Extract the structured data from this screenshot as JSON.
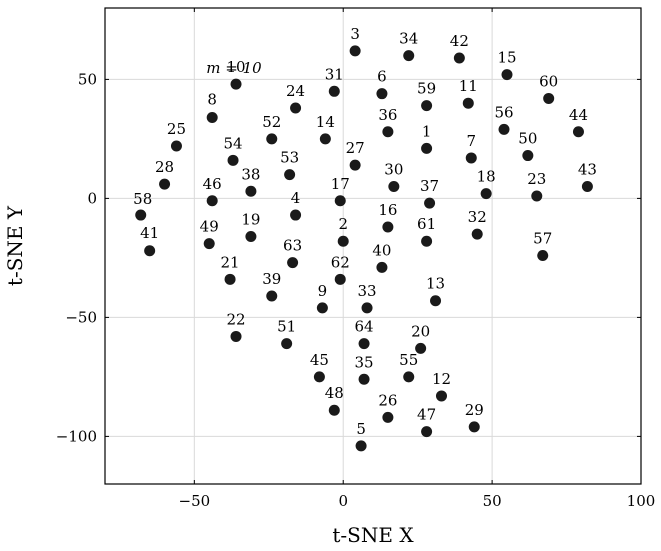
{
  "chart_data": {
    "type": "scatter",
    "title": "",
    "xlabel": "t-SNE X",
    "ylabel": "t-SNE Y",
    "xlim": [
      -80,
      100
    ],
    "ylim": [
      -120,
      80
    ],
    "xticks": [
      -50,
      0,
      50,
      100
    ],
    "yticks": [
      -100,
      -50,
      0,
      50
    ],
    "xtick_labels": [
      "−50",
      "0",
      "50",
      "100"
    ],
    "ytick_labels": [
      "−100",
      "−50",
      "0",
      "50"
    ],
    "grid": true,
    "marker_color": "#1a1a1a",
    "annotation": "m = 10",
    "points": [
      {
        "label": "1",
        "x": 28,
        "y": 21
      },
      {
        "label": "2",
        "x": 0,
        "y": -18
      },
      {
        "label": "3",
        "x": 4,
        "y": 62
      },
      {
        "label": "4",
        "x": -16,
        "y": -7
      },
      {
        "label": "5",
        "x": 6,
        "y": -104
      },
      {
        "label": "6",
        "x": 13,
        "y": 44
      },
      {
        "label": "7",
        "x": 43,
        "y": 17
      },
      {
        "label": "8",
        "x": -44,
        "y": 34
      },
      {
        "label": "9",
        "x": -7,
        "y": -46
      },
      {
        "label": "10",
        "x": -36,
        "y": 48
      },
      {
        "label": "11",
        "x": 42,
        "y": 40
      },
      {
        "label": "12",
        "x": 33,
        "y": -83
      },
      {
        "label": "13",
        "x": 31,
        "y": -43
      },
      {
        "label": "14",
        "x": -6,
        "y": 25
      },
      {
        "label": "15",
        "x": 55,
        "y": 52
      },
      {
        "label": "16",
        "x": 15,
        "y": -12
      },
      {
        "label": "17",
        "x": -1,
        "y": -1
      },
      {
        "label": "18",
        "x": 48,
        "y": 2
      },
      {
        "label": "19",
        "x": -31,
        "y": -16
      },
      {
        "label": "20",
        "x": 26,
        "y": -63
      },
      {
        "label": "21",
        "x": -38,
        "y": -34
      },
      {
        "label": "22",
        "x": -36,
        "y": -58
      },
      {
        "label": "23",
        "x": 65,
        "y": 1
      },
      {
        "label": "24",
        "x": -16,
        "y": 38
      },
      {
        "label": "25",
        "x": -56,
        "y": 22
      },
      {
        "label": "26",
        "x": 15,
        "y": -92
      },
      {
        "label": "27",
        "x": 4,
        "y": 14
      },
      {
        "label": "28",
        "x": -60,
        "y": 6
      },
      {
        "label": "29",
        "x": 44,
        "y": -96
      },
      {
        "label": "30",
        "x": 17,
        "y": 5
      },
      {
        "label": "31",
        "x": -3,
        "y": 45
      },
      {
        "label": "32",
        "x": 45,
        "y": -15
      },
      {
        "label": "33",
        "x": 8,
        "y": -46
      },
      {
        "label": "34",
        "x": 22,
        "y": 60
      },
      {
        "label": "35",
        "x": 7,
        "y": -76
      },
      {
        "label": "36",
        "x": 15,
        "y": 28
      },
      {
        "label": "37",
        "x": 29,
        "y": -2
      },
      {
        "label": "38",
        "x": -31,
        "y": 3
      },
      {
        "label": "39",
        "x": -24,
        "y": -41
      },
      {
        "label": "40",
        "x": 13,
        "y": -29
      },
      {
        "label": "41",
        "x": -65,
        "y": -22
      },
      {
        "label": "42",
        "x": 39,
        "y": 59
      },
      {
        "label": "43",
        "x": 82,
        "y": 5
      },
      {
        "label": "44",
        "x": 79,
        "y": 28
      },
      {
        "label": "45",
        "x": -8,
        "y": -75
      },
      {
        "label": "46",
        "x": -44,
        "y": -1
      },
      {
        "label": "47",
        "x": 28,
        "y": -98
      },
      {
        "label": "48",
        "x": -3,
        "y": -89
      },
      {
        "label": "49",
        "x": -45,
        "y": -19
      },
      {
        "label": "50",
        "x": 62,
        "y": 18
      },
      {
        "label": "51",
        "x": -19,
        "y": -61
      },
      {
        "label": "52",
        "x": -24,
        "y": 25
      },
      {
        "label": "53",
        "x": -18,
        "y": 10
      },
      {
        "label": "54",
        "x": -37,
        "y": 16
      },
      {
        "label": "55",
        "x": 22,
        "y": -75
      },
      {
        "label": "56",
        "x": 54,
        "y": 29
      },
      {
        "label": "57",
        "x": 67,
        "y": -24
      },
      {
        "label": "58",
        "x": -68,
        "y": -7
      },
      {
        "label": "59",
        "x": 28,
        "y": 39
      },
      {
        "label": "60",
        "x": 69,
        "y": 42
      },
      {
        "label": "61",
        "x": 28,
        "y": -18
      },
      {
        "label": "62",
        "x": -1,
        "y": -34
      },
      {
        "label": "63",
        "x": -17,
        "y": -27
      },
      {
        "label": "64",
        "x": 7,
        "y": -61
      }
    ]
  }
}
